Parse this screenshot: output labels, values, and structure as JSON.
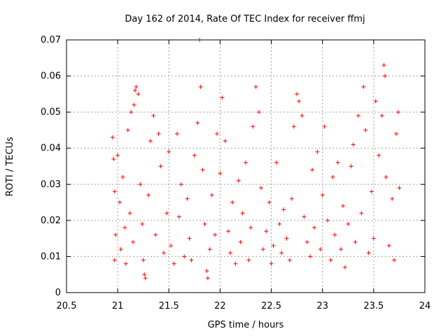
{
  "chart_data": {
    "type": "scatter",
    "title": "Day 162 of 2014, Rate Of TEC Index for receiver ffmj",
    "xlabel": "GPS time / hours",
    "ylabel": "ROTI / TECUs",
    "xlim": [
      20.5,
      24
    ],
    "ylim": [
      0,
      0.07
    ],
    "x_ticks": [
      20.5,
      21,
      21.5,
      22,
      22.5,
      23,
      23.5,
      24
    ],
    "x_tick_labels": [
      "20.5",
      "21",
      "21.5",
      "22",
      "22.5",
      "23",
      "23.5",
      "24"
    ],
    "y_ticks": [
      0,
      0.01,
      0.02,
      0.03,
      0.04,
      0.05,
      0.06,
      0.07
    ],
    "y_tick_labels": [
      "0",
      "0.01",
      "0.02",
      "0.03",
      "0.04",
      "0.05",
      "0.06",
      "0.07"
    ],
    "grid": true,
    "marker": "plus",
    "marker_color": "#ff0000",
    "series": [
      {
        "name": "ROTI",
        "points": [
          [
            20.95,
            0.043
          ],
          [
            20.96,
            0.037
          ],
          [
            20.97,
            0.028
          ],
          [
            20.97,
            0.009
          ],
          [
            20.98,
            0.016
          ],
          [
            21.0,
            0.038
          ],
          [
            21.02,
            0.025
          ],
          [
            21.03,
            0.012
          ],
          [
            21.05,
            0.032
          ],
          [
            21.07,
            0.018
          ],
          [
            21.08,
            0.008
          ],
          [
            21.1,
            0.045
          ],
          [
            21.12,
            0.022
          ],
          [
            21.13,
            0.05
          ],
          [
            21.15,
            0.014
          ],
          [
            21.16,
            0.052
          ],
          [
            21.17,
            0.056
          ],
          [
            21.18,
            0.057
          ],
          [
            21.2,
            0.055
          ],
          [
            21.22,
            0.03
          ],
          [
            21.24,
            0.019
          ],
          [
            21.25,
            0.009
          ],
          [
            21.26,
            0.005
          ],
          [
            21.27,
            0.004
          ],
          [
            21.3,
            0.027
          ],
          [
            21.32,
            0.042
          ],
          [
            21.35,
            0.049
          ],
          [
            21.37,
            0.016
          ],
          [
            21.4,
            0.044
          ],
          [
            21.42,
            0.035
          ],
          [
            21.45,
            0.011
          ],
          [
            21.48,
            0.022
          ],
          [
            21.5,
            0.039
          ],
          [
            21.52,
            0.013
          ],
          [
            21.55,
            0.008
          ],
          [
            21.58,
            0.044
          ],
          [
            21.6,
            0.021
          ],
          [
            21.62,
            0.03
          ],
          [
            21.65,
            0.01
          ],
          [
            21.68,
            0.026
          ],
          [
            21.7,
            0.015
          ],
          [
            21.72,
            0.009
          ],
          [
            21.75,
            0.038
          ],
          [
            21.78,
            0.047
          ],
          [
            21.8,
            0.07
          ],
          [
            21.81,
            0.057
          ],
          [
            21.83,
            0.034
          ],
          [
            21.85,
            0.019
          ],
          [
            21.87,
            0.006
          ],
          [
            21.88,
            0.004
          ],
          [
            21.9,
            0.012
          ],
          [
            21.92,
            0.027
          ],
          [
            21.95,
            0.016
          ],
          [
            21.97,
            0.044
          ],
          [
            22.0,
            0.033
          ],
          [
            22.02,
            0.054
          ],
          [
            22.05,
            0.042
          ],
          [
            22.08,
            0.017
          ],
          [
            22.1,
            0.011
          ],
          [
            22.12,
            0.025
          ],
          [
            22.15,
            0.008
          ],
          [
            22.18,
            0.031
          ],
          [
            22.2,
            0.014
          ],
          [
            22.22,
            0.022
          ],
          [
            22.25,
            0.036
          ],
          [
            22.28,
            0.009
          ],
          [
            22.3,
            0.018
          ],
          [
            22.32,
            0.046
          ],
          [
            22.35,
            0.057
          ],
          [
            22.38,
            0.05
          ],
          [
            22.4,
            0.029
          ],
          [
            22.42,
            0.012
          ],
          [
            22.45,
            0.017
          ],
          [
            22.48,
            0.025
          ],
          [
            22.5,
            0.008
          ],
          [
            22.52,
            0.013
          ],
          [
            22.55,
            0.036
          ],
          [
            22.58,
            0.019
          ],
          [
            22.6,
            0.011
          ],
          [
            22.62,
            0.023
          ],
          [
            22.65,
            0.015
          ],
          [
            22.68,
            0.009
          ],
          [
            22.7,
            0.026
          ],
          [
            22.72,
            0.046
          ],
          [
            22.75,
            0.055
          ],
          [
            22.77,
            0.053
          ],
          [
            22.8,
            0.049
          ],
          [
            22.82,
            0.021
          ],
          [
            22.85,
            0.014
          ],
          [
            22.88,
            0.01
          ],
          [
            22.9,
            0.034
          ],
          [
            22.92,
            0.018
          ],
          [
            22.95,
            0.039
          ],
          [
            22.98,
            0.012
          ],
          [
            23.0,
            0.027
          ],
          [
            23.02,
            0.046
          ],
          [
            23.05,
            0.02
          ],
          [
            23.08,
            0.009
          ],
          [
            23.1,
            0.032
          ],
          [
            23.12,
            0.016
          ],
          [
            23.15,
            0.036
          ],
          [
            23.18,
            0.012
          ],
          [
            23.2,
            0.024
          ],
          [
            23.22,
            0.007
          ],
          [
            23.25,
            0.019
          ],
          [
            23.28,
            0.035
          ],
          [
            23.3,
            0.041
          ],
          [
            23.32,
            0.014
          ],
          [
            23.35,
            0.049
          ],
          [
            23.38,
            0.022
          ],
          [
            23.4,
            0.057
          ],
          [
            23.42,
            0.045
          ],
          [
            23.45,
            0.011
          ],
          [
            23.48,
            0.028
          ],
          [
            23.5,
            0.015
          ],
          [
            23.52,
            0.053
          ],
          [
            23.55,
            0.038
          ],
          [
            23.58,
            0.049
          ],
          [
            23.6,
            0.063
          ],
          [
            23.61,
            0.06
          ],
          [
            23.62,
            0.032
          ],
          [
            23.65,
            0.013
          ],
          [
            23.68,
            0.026
          ],
          [
            23.7,
            0.009
          ],
          [
            23.72,
            0.044
          ],
          [
            23.74,
            0.05
          ],
          [
            23.75,
            0.029
          ]
        ]
      }
    ]
  }
}
